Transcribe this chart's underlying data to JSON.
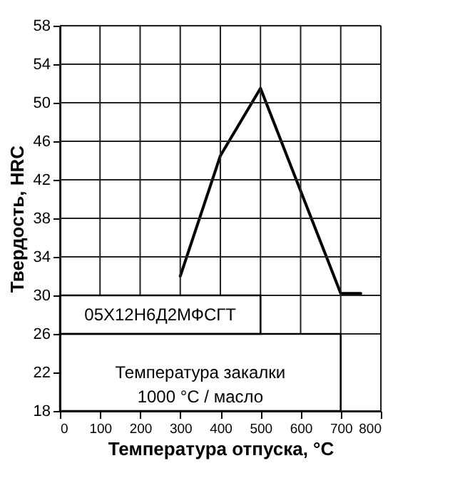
{
  "chart_data": {
    "type": "line",
    "xlabel": "Температура отпуска, °C",
    "ylabel": "Твердость, HRC",
    "x": [
      300,
      400,
      500,
      700,
      750
    ],
    "series": [
      {
        "color": "#000000",
        "values": [
          32,
          44.5,
          51.5,
          30.2,
          30.2
        ]
      }
    ],
    "xlim": [
      0,
      800
    ],
    "xticks": [
      0,
      100,
      200,
      300,
      400,
      500,
      600,
      700,
      800
    ],
    "ylim": [
      18,
      58
    ],
    "yticks": [
      18,
      22,
      26,
      30,
      34,
      38,
      42,
      46,
      50,
      54,
      58
    ],
    "grid": true,
    "marker": "none",
    "line_style": "solid",
    "annotations": [
      "05Х12Н6Д2МФСГТ",
      "Температура закалки\n1000 °C / масло"
    ]
  }
}
